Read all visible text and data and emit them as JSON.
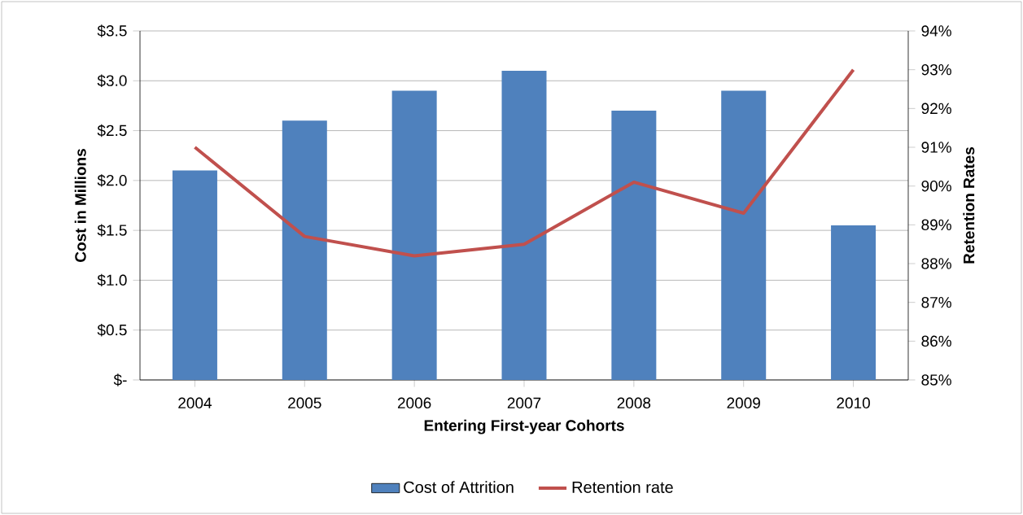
{
  "chart_data": {
    "type": "bar",
    "xlabel": "Entering First-year Cohorts",
    "ylabel": "Cost in Millions",
    "y2label": "Retention Rates",
    "categories": [
      "2004",
      "2005",
      "2006",
      "2007",
      "2008",
      "2009",
      "2010"
    ],
    "series": [
      {
        "name": "Cost of Attrition",
        "color": "#4f81bd",
        "values": [
          2.1,
          2.6,
          2.9,
          3.1,
          2.7,
          2.9,
          1.55
        ]
      },
      {
        "name": "Retention rate",
        "type": "line",
        "axis": "y2",
        "color": "#c0504d",
        "values": [
          91.0,
          88.7,
          88.2,
          88.5,
          90.1,
          89.3,
          93.0
        ]
      }
    ],
    "ylim": [
      0,
      3.5
    ],
    "yticks": [
      {
        "value": 0,
        "label": "$-"
      },
      {
        "value": 0.5,
        "label": "$0.5"
      },
      {
        "value": 1.0,
        "label": "$1.0"
      },
      {
        "value": 1.5,
        "label": "$1.5"
      },
      {
        "value": 2.0,
        "label": "$2.0"
      },
      {
        "value": 2.5,
        "label": "$2.5"
      },
      {
        "value": 3.0,
        "label": "$3.0"
      },
      {
        "value": 3.5,
        "label": "$3.5"
      }
    ],
    "y2lim": [
      85,
      94
    ],
    "y2ticks": [
      {
        "value": 85,
        "label": "85%"
      },
      {
        "value": 86,
        "label": "86%"
      },
      {
        "value": 87,
        "label": "87%"
      },
      {
        "value": 88,
        "label": "88%"
      },
      {
        "value": 89,
        "label": "89%"
      },
      {
        "value": 90,
        "label": "90%"
      },
      {
        "value": 91,
        "label": "91%"
      },
      {
        "value": 92,
        "label": "92%"
      },
      {
        "value": 93,
        "label": "93%"
      },
      {
        "value": 94,
        "label": "94%"
      }
    ],
    "grid": "y",
    "legend": "bottom",
    "marker": "none",
    "line_style": "solid"
  }
}
